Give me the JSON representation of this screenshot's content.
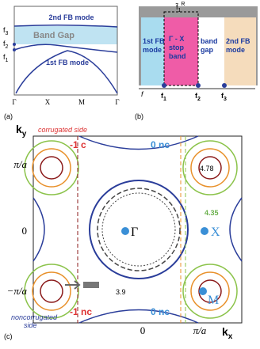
{
  "panel_a": {
    "label": "(a)",
    "upper_mode": "2nd FB mode",
    "gap": "Band Gap",
    "lower_mode": "1st FB mode",
    "freqs": [
      {
        "symbol": "f",
        "sub": "3"
      },
      {
        "symbol": "f",
        "sub": "2"
      },
      {
        "symbol": "f",
        "sub": "1"
      }
    ],
    "x_labels": [
      "Γ",
      "X",
      "M",
      "Γ"
    ]
  },
  "panel_b": {
    "label": "(b)",
    "top": {
      "symbol": "f̃",
      "sub": "1",
      "sup": "R"
    },
    "box1": [
      "1st FB",
      "mode"
    ],
    "box2": [
      "Γ - X",
      "stop",
      "band"
    ],
    "gap": [
      "band",
      "gap"
    ],
    "box3": [
      "2nd FB",
      "mode"
    ],
    "axis": "f",
    "freqs": [
      {
        "symbol": "f",
        "sub": "1"
      },
      {
        "symbol": "f",
        "sub": "2"
      },
      {
        "symbol": "f",
        "sub": "3"
      }
    ]
  },
  "panel_c": {
    "label": "(c)",
    "top_note": "corrugated side",
    "bottom_note": [
      "noncorrugated",
      "side"
    ],
    "y_axis": {
      "symbol": "k",
      "sub": "y"
    },
    "y_ticks": [
      "π/a",
      "0",
      "−π/a"
    ],
    "x_ticks": [
      "0",
      "π/a"
    ],
    "x_axis": {
      "symbol": "k",
      "sub": "x"
    },
    "annotations": {
      "c_top": "-1 c",
      "nc_top": "0 nc",
      "v1": "4.78",
      "v2": "4.35",
      "gamma": "Γ",
      "x": "X",
      "m": "M",
      "v3": "3.9",
      "nc_bottom_left": "-1 nc",
      "nc_bottom": "0 nc"
    }
  }
}
